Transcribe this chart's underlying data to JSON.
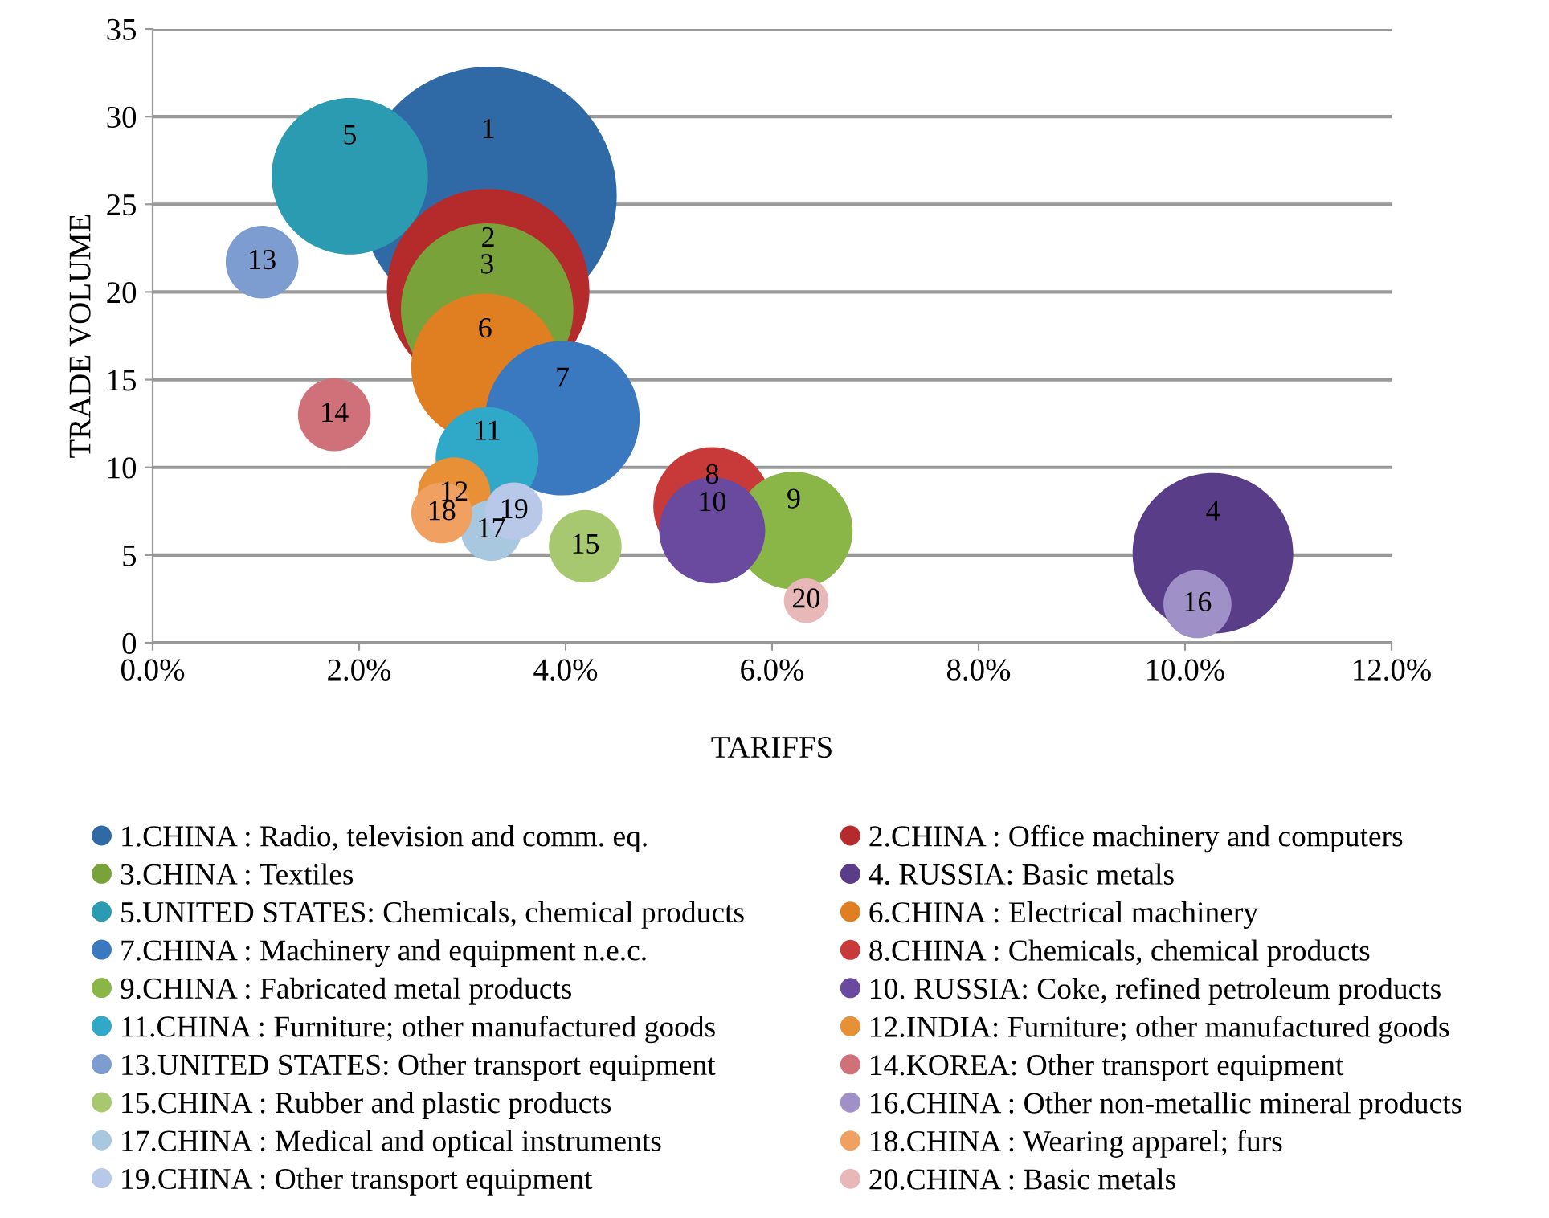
{
  "chart_data": {
    "type": "bubble",
    "xlabel": "TARIFFS",
    "ylabel": "TRADE VOLUME",
    "xlim": [
      0,
      12
    ],
    "xticks": [
      {
        "value": 0,
        "label": "0.0%"
      },
      {
        "value": 2,
        "label": "2.0%"
      },
      {
        "value": 4,
        "label": "4.0%"
      },
      {
        "value": 6,
        "label": "6.0%"
      },
      {
        "value": 8,
        "label": "8.0%"
      },
      {
        "value": 10,
        "label": "10.0%"
      },
      {
        "value": 12,
        "label": "12.0%"
      }
    ],
    "ylim": [
      0,
      35
    ],
    "yticks": [
      0,
      5,
      10,
      15,
      20,
      25,
      30,
      35
    ],
    "grid": "y",
    "legend": "bottom",
    "series": [
      {
        "name": "1.CHINA : Radio, television and comm. eq.",
        "color": "#2f6aa6",
        "x": [
          3.25
        ],
        "values": [
          25.5
        ],
        "sizes": [
          1
        ]
      },
      {
        "name": "2.CHINA : Office machinery and computers",
        "color": "#b52a2a",
        "x": [
          3.25
        ],
        "values": [
          20.1
        ],
        "sizes": [
          0.62
        ]
      },
      {
        "name": "3.CHINA : Textiles",
        "color": "#79a23a",
        "x": [
          3.24
        ],
        "values": [
          19
        ],
        "sizes": [
          0.45
        ]
      },
      {
        "name": "4. RUSSIA: Basic metals",
        "color": "#5a3d88",
        "x": [
          10.27
        ],
        "values": [
          5.1
        ],
        "sizes": [
          0.39
        ]
      },
      {
        "name": "5.UNITED STATES: Chemicals, chemical products",
        "color": "#2a9bb0",
        "x": [
          1.91
        ],
        "values": [
          26.6
        ],
        "sizes": [
          0.37
        ]
      },
      {
        "name": "6.CHINA : Electrical machinery",
        "color": "#e07f22",
        "x": [
          3.22
        ],
        "values": [
          15.7
        ],
        "sizes": [
          0.33
        ]
      },
      {
        "name": "7.CHINA : Machinery and equipment n.e.c.",
        "color": "#3a78c0",
        "x": [
          3.97
        ],
        "values": [
          12.8
        ],
        "sizes": [
          0.36
        ]
      },
      {
        "name": "8.CHINA : Chemicals, chemical products",
        "color": "#c8393a",
        "x": [
          5.42
        ],
        "values": [
          7.8
        ],
        "sizes": [
          0.21
        ]
      },
      {
        "name": "9.CHINA : Fabricated metal products",
        "color": "#8ab648",
        "x": [
          6.21
        ],
        "values": [
          6.4
        ],
        "sizes": [
          0.21
        ]
      },
      {
        "name": "10. RUSSIA: Coke, refined petroleum products",
        "color": "#6a4a9e",
        "x": [
          5.42
        ],
        "values": [
          6.4
        ],
        "sizes": [
          0.17
        ]
      },
      {
        "name": "11.CHINA : Furniture; other manufactured goods",
        "color": "#30a8c8",
        "x": [
          3.24
        ],
        "values": [
          10.5
        ],
        "sizes": [
          0.16
        ]
      },
      {
        "name": "12.INDIA: Furniture; other manufactured goods",
        "color": "#e89035",
        "x": [
          2.92
        ],
        "values": [
          8.5
        ],
        "sizes": [
          0.08
        ]
      },
      {
        "name": "13.UNITED STATES: Other transport equipment",
        "color": "#7d9cd0",
        "x": [
          1.06
        ],
        "values": [
          21.7
        ],
        "sizes": [
          0.08
        ]
      },
      {
        "name": "14.KOREA: Other transport equipment",
        "color": "#d07078",
        "x": [
          1.76
        ],
        "values": [
          13
        ],
        "sizes": [
          0.08
        ]
      },
      {
        "name": "15.CHINA : Rubber and plastic products",
        "color": "#a8c870",
        "x": [
          4.19
        ],
        "values": [
          5.5
        ],
        "sizes": [
          0.08
        ]
      },
      {
        "name": "16.CHINA : Other non-metallic mineral products",
        "color": "#a090c8",
        "x": [
          10.12
        ],
        "values": [
          2.2
        ],
        "sizes": [
          0.07
        ]
      },
      {
        "name": "17.CHINA : Medical and optical instruments",
        "color": "#a8c8e0",
        "x": [
          3.28
        ],
        "values": [
          6.4
        ],
        "sizes": [
          0.056
        ]
      },
      {
        "name": "18.CHINA : Wearing apparel; furs",
        "color": "#f0a060",
        "x": [
          2.8
        ],
        "values": [
          7.4
        ],
        "sizes": [
          0.056
        ]
      },
      {
        "name": "19.CHINA : Other transport equipment",
        "color": "#b8c8e8",
        "x": [
          3.5
        ],
        "values": [
          7.5
        ],
        "sizes": [
          0.05
        ]
      },
      {
        "name": "20.CHINA : Basic metals",
        "color": "#e8b8b8",
        "x": [
          6.33
        ],
        "values": [
          2.4
        ],
        "sizes": [
          0.03
        ]
      }
    ],
    "annotations": [
      {
        "text": "1",
        "x": 3.25,
        "y": 25.5
      },
      {
        "text": "2",
        "x": 3.25,
        "y": 20.1
      },
      {
        "text": "3",
        "x": 3.24,
        "y": 19
      },
      {
        "text": "4",
        "x": 10.27,
        "y": 5.1
      },
      {
        "text": "5",
        "x": 1.91,
        "y": 26.6
      },
      {
        "text": "6",
        "x": 3.22,
        "y": 15.7
      },
      {
        "text": "7",
        "x": 3.97,
        "y": 12.8
      },
      {
        "text": "8",
        "x": 5.42,
        "y": 7.8
      },
      {
        "text": "9",
        "x": 6.21,
        "y": 6.4
      },
      {
        "text": "10",
        "x": 5.42,
        "y": 6.4
      },
      {
        "text": "11",
        "x": 3.24,
        "y": 10.5
      },
      {
        "text": "12",
        "x": 2.92,
        "y": 8.5
      },
      {
        "text": "13",
        "x": 1.06,
        "y": 21.7
      },
      {
        "text": "14",
        "x": 1.76,
        "y": 13
      },
      {
        "text": "15",
        "x": 4.19,
        "y": 5.5
      },
      {
        "text": "16",
        "x": 10.12,
        "y": 2.2
      },
      {
        "text": "17",
        "x": 3.28,
        "y": 6.4
      },
      {
        "text": "18",
        "x": 2.8,
        "y": 7.4
      },
      {
        "text": "19",
        "x": 3.5,
        "y": 7.5
      },
      {
        "text": "20",
        "x": 6.33,
        "y": 2.4
      }
    ]
  }
}
